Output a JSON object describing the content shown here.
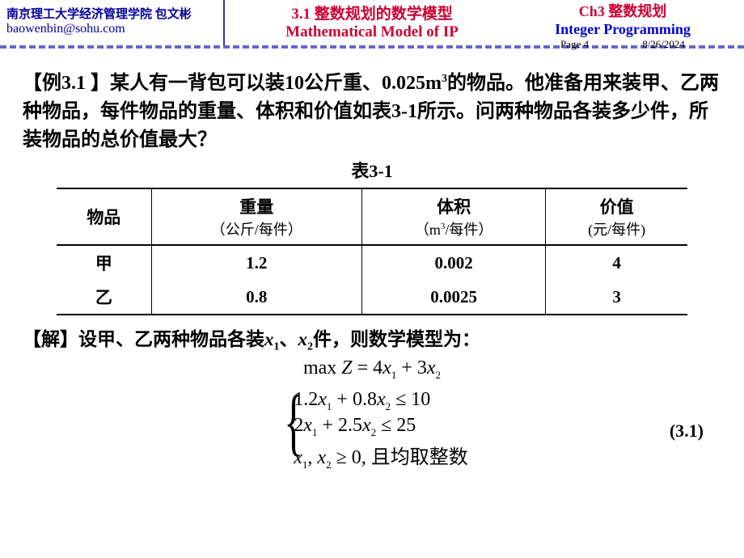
{
  "header": {
    "affiliation": "南京理工大学经济管理学院  包文彬",
    "email": "baowenbin@sohu.com",
    "section_cn": "3.1  整数规划的数学模型",
    "section_en": "Mathematical Model of IP",
    "chapter": "Ch3  整数规划",
    "chapter_en": "Integer Programming",
    "page": "Page 4",
    "date": "8/26/2024"
  },
  "problem": {
    "label": "【例3.1 】",
    "text_part1": "某人有一背包可以装10公斤重、0.025m",
    "text_sup": "3",
    "text_part2": "的物品。他准备用来装甲、乙两种物品，每件物品的重量、体积和价值如表3-1所示。问两种物品各装多少件，所装物品的总价值最大？"
  },
  "table": {
    "caption": "表3-1",
    "columns": {
      "c1": "物品",
      "c2_line1": "重量",
      "c2_line2": "（公斤/每件）",
      "c3_line1": "体积",
      "c3_line2_a": "（m",
      "c3_line2_sup": "3",
      "c3_line2_b": "/每件）",
      "c4_line1": "价值",
      "c4_line2": "(元/每件)"
    },
    "rows": [
      {
        "name": "甲",
        "weight": "1.2",
        "volume": "0.002",
        "value": "4"
      },
      {
        "name": "乙",
        "weight": "0.8",
        "volume": "0.0025",
        "value": "3"
      }
    ]
  },
  "solution": {
    "label": "【解】",
    "text_a": "设甲、乙两种物品各装",
    "var1": "x",
    "sub1": "1",
    "sep": "、",
    "var2": "x",
    "sub2": "2",
    "text_b": "件，则数学模型为："
  },
  "math": {
    "obj_pre": "max ",
    "obj_Z": "Z",
    "obj_eq": " = 4",
    "obj_x1": "x",
    "obj_s1": "1",
    "obj_plus": " + 3",
    "obj_x2": "x",
    "obj_s2": "2",
    "c1_a": "1.2",
    "c1_x1": "x",
    "c1_s1": "1",
    "c1_b": " + 0.8",
    "c1_x2": "x",
    "c1_s2": "2",
    "c1_c": " ≤ 10",
    "c2_a": "2",
    "c2_x1": "x",
    "c2_s1": "1",
    "c2_b": " + 2.5",
    "c2_x2": "x",
    "c2_s2": "2",
    "c2_c": " ≤ 25",
    "c3_x1": "x",
    "c3_s1": "1",
    "c3_comma": ", ",
    "c3_x2": "x",
    "c3_s2": "2",
    "c3_tail": " ≥ 0, 且均取整数",
    "eqnum": "(3.1)"
  },
  "style": {
    "color_red": "#cc0033",
    "color_blue": "#0000cc",
    "color_navy": "#000099",
    "color_border": "#6666cc",
    "font_body": 24,
    "font_header": 18
  }
}
